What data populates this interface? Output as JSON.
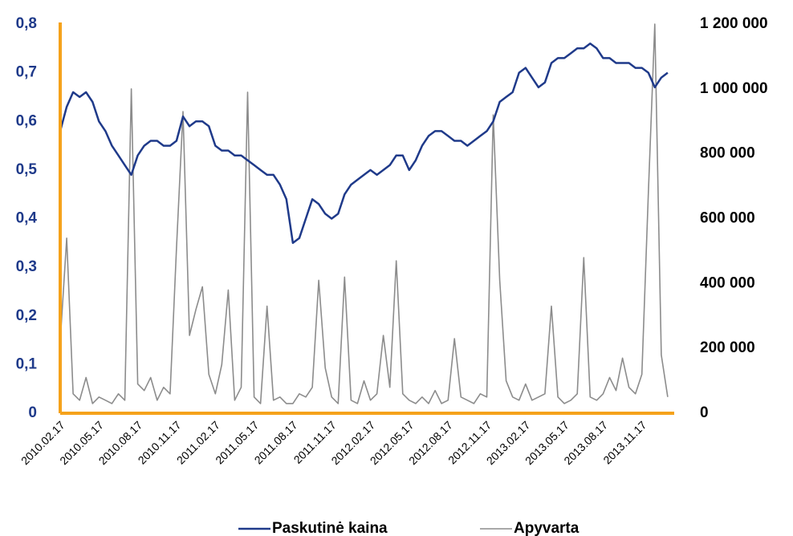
{
  "chart_data": {
    "type": "line",
    "categories": [
      "2010.02.17",
      null,
      null,
      null,
      null,
      null,
      "2010.05.17",
      null,
      null,
      null,
      null,
      null,
      "2010.08.17",
      null,
      null,
      null,
      null,
      null,
      "2010.11.17",
      null,
      null,
      null,
      null,
      null,
      "2011.02.17",
      null,
      null,
      null,
      null,
      null,
      "2011.05.17",
      null,
      null,
      null,
      null,
      null,
      "2011.08.17",
      null,
      null,
      null,
      null,
      null,
      "2011.11.17",
      null,
      null,
      null,
      null,
      null,
      "2012.02.17",
      null,
      null,
      null,
      null,
      null,
      "2012.05.17",
      null,
      null,
      null,
      null,
      null,
      "2012.08.17",
      null,
      null,
      null,
      null,
      null,
      "2012.11.17",
      null,
      null,
      null,
      null,
      null,
      "2013.02.17",
      null,
      null,
      null,
      null,
      null,
      "2013.05.17",
      null,
      null,
      null,
      null,
      null,
      "2013.08.17",
      null,
      null,
      null,
      null,
      null,
      "2013.11.17",
      null,
      null,
      null,
      null
    ],
    "series": [
      {
        "name": "Paskutinė kaina",
        "color": "#1f3a8a",
        "axis": "y",
        "values": [
          0.58,
          0.63,
          0.66,
          0.65,
          0.66,
          0.64,
          0.6,
          0.58,
          0.55,
          0.53,
          0.51,
          0.49,
          0.53,
          0.55,
          0.56,
          0.56,
          0.55,
          0.55,
          0.56,
          0.61,
          0.59,
          0.6,
          0.6,
          0.59,
          0.55,
          0.54,
          0.54,
          0.53,
          0.53,
          0.52,
          0.51,
          0.5,
          0.49,
          0.49,
          0.47,
          0.44,
          0.35,
          0.36,
          0.4,
          0.44,
          0.43,
          0.41,
          0.4,
          0.41,
          0.45,
          0.47,
          0.48,
          0.49,
          0.5,
          0.49,
          0.5,
          0.51,
          0.53,
          0.53,
          0.5,
          0.52,
          0.55,
          0.57,
          0.58,
          0.58,
          0.57,
          0.56,
          0.56,
          0.55,
          0.56,
          0.57,
          0.58,
          0.6,
          0.64,
          0.65,
          0.66,
          0.7,
          0.71,
          0.69,
          0.67,
          0.68,
          0.72,
          0.73,
          0.73,
          0.74,
          0.75,
          0.75,
          0.76,
          0.75,
          0.73,
          0.73,
          0.72,
          0.72,
          0.72,
          0.71,
          0.71,
          0.7,
          0.67,
          0.69,
          0.7
        ]
      },
      {
        "name": "Apyvarta",
        "color": "#8c8c8c",
        "axis": "y2",
        "values": [
          220000,
          540000,
          60000,
          40000,
          110000,
          30000,
          50000,
          40000,
          30000,
          60000,
          40000,
          1000000,
          90000,
          70000,
          110000,
          40000,
          80000,
          60000,
          510000,
          930000,
          240000,
          320000,
          390000,
          120000,
          60000,
          150000,
          380000,
          40000,
          80000,
          990000,
          50000,
          30000,
          330000,
          40000,
          50000,
          30000,
          30000,
          60000,
          50000,
          80000,
          410000,
          140000,
          50000,
          30000,
          420000,
          40000,
          30000,
          100000,
          40000,
          60000,
          240000,
          80000,
          470000,
          60000,
          40000,
          30000,
          50000,
          30000,
          70000,
          30000,
          40000,
          230000,
          50000,
          40000,
          30000,
          60000,
          50000,
          920000,
          410000,
          100000,
          50000,
          40000,
          90000,
          40000,
          50000,
          60000,
          330000,
          50000,
          30000,
          40000,
          60000,
          480000,
          50000,
          40000,
          60000,
          110000,
          70000,
          170000,
          80000,
          60000,
          120000,
          680000,
          1200000,
          180000,
          50000
        ]
      }
    ],
    "ylim": [
      0,
      0.8
    ],
    "yticks": [
      0,
      {
        "value": 0.1,
        "label": "0,1"
      },
      {
        "value": 0.2,
        "label": "0,2"
      },
      {
        "value": 0.3,
        "label": "0,3"
      },
      {
        "value": 0.4,
        "label": "0,4"
      },
      {
        "value": 0.5,
        "label": "0,5"
      },
      {
        "value": 0.6,
        "label": "0,6"
      },
      {
        "value": 0.7,
        "label": "0,7"
      },
      {
        "value": 0.8,
        "label": "0,8"
      }
    ],
    "y2lim": [
      0,
      1200000
    ],
    "y2ticks": [
      0,
      {
        "value": 200000,
        "label": "200 000"
      },
      {
        "value": 400000,
        "label": "400 000"
      },
      {
        "value": 600000,
        "label": "600 000"
      },
      {
        "value": 800000,
        "label": "800 000"
      },
      {
        "value": 1000000,
        "label": "1 000 000"
      },
      {
        "value": 1200000,
        "label": "1 200 000"
      }
    ],
    "axis_color": "#f5a21b",
    "legend": "bottom"
  }
}
